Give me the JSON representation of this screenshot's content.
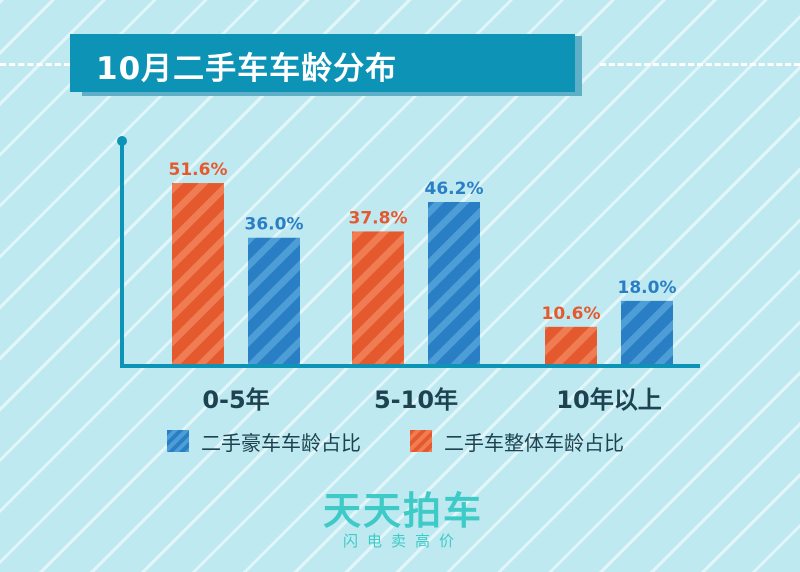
{
  "title": "10月二手车车龄分布",
  "colors": {
    "lux": "#2a7fc4",
    "all": "#e45a2e",
    "axis": "#0d93b6",
    "title_bg": "#0d93b6",
    "brand": "#3ecac6"
  },
  "legend": {
    "lux_label": "二手豪车车龄占比",
    "all_label": "二手车整体车龄占比"
  },
  "brand": {
    "name": "天天拍车",
    "slogan": "闪电卖高价"
  },
  "chart_data": {
    "type": "bar",
    "title": "10月二手车车龄分布",
    "categories": [
      "0-5年",
      "5-10年",
      "10年以上"
    ],
    "series": [
      {
        "name": "二手车整体车龄占比",
        "values": [
          51.6,
          37.8,
          10.6
        ],
        "labels": [
          "51.6%",
          "37.8%",
          "10.6%"
        ],
        "color": "#e45a2e"
      },
      {
        "name": "二手豪车车龄占比",
        "values": [
          36.0,
          46.2,
          18.0
        ],
        "labels": [
          "36.0%",
          "46.2%",
          "18.0%"
        ],
        "color": "#2a7fc4"
      }
    ],
    "ylim": [
      0,
      60
    ],
    "grid": false,
    "legend_position": "bottom"
  }
}
